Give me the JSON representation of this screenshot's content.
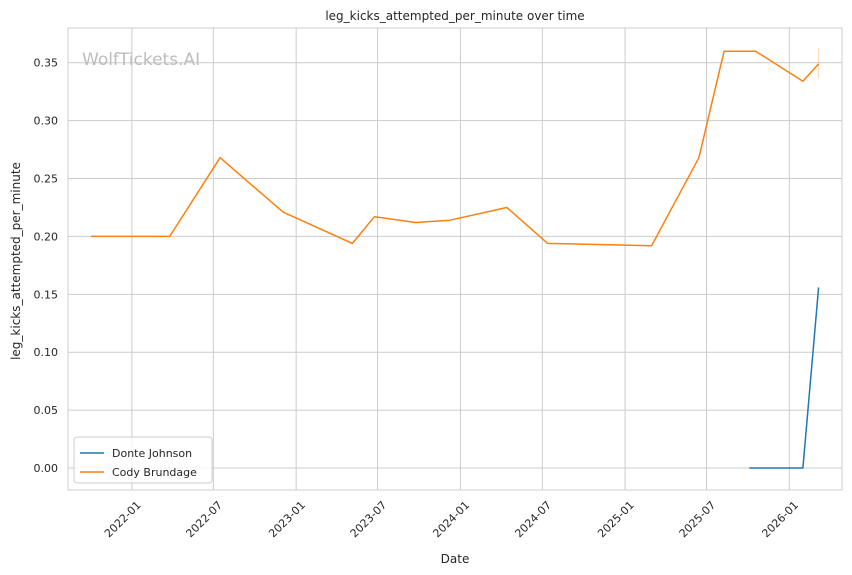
{
  "chart_data": {
    "type": "line",
    "title": "leg_kicks_attempted_per_minute over time",
    "xlabel": "Date",
    "ylabel": "leg_kicks_attempted_per_minute",
    "watermark": "WolfTickets.AI",
    "xlim": [
      "2021-08-12",
      "2026-04-28"
    ],
    "ylim": [
      -0.019,
      0.38
    ],
    "x_ticks": [
      "2022-01",
      "2022-07",
      "2023-01",
      "2023-07",
      "2024-01",
      "2024-07",
      "2025-01",
      "2025-07",
      "2026-01"
    ],
    "y_ticks": [
      "0.00",
      "0.05",
      "0.10",
      "0.15",
      "0.20",
      "0.25",
      "0.30",
      "0.35"
    ],
    "grid": true,
    "legend_position": "lower-left",
    "series": [
      {
        "name": "Donte Johnson",
        "color": "#1f77b4",
        "points": [
          {
            "x": "2025-10-04",
            "y": 0.0
          },
          {
            "x": "2026-01-31",
            "y": 0.0
          },
          {
            "x": "2026-03-07",
            "y": 0.156
          }
        ]
      },
      {
        "name": "Cody Brundage",
        "color": "#ff7f0e",
        "points": [
          {
            "x": "2021-10-02",
            "y": 0.2
          },
          {
            "x": "2022-03-26",
            "y": 0.2
          },
          {
            "x": "2022-07-16",
            "y": 0.268
          },
          {
            "x": "2022-12-03",
            "y": 0.221
          },
          {
            "x": "2023-05-06",
            "y": 0.194
          },
          {
            "x": "2023-06-24",
            "y": 0.217
          },
          {
            "x": "2023-09-23",
            "y": 0.212
          },
          {
            "x": "2023-12-09",
            "y": 0.214
          },
          {
            "x": "2024-04-13",
            "y": 0.225
          },
          {
            "x": "2024-07-13",
            "y": 0.194
          },
          {
            "x": "2025-03-01",
            "y": 0.192
          },
          {
            "x": "2025-06-14",
            "y": 0.268
          },
          {
            "x": "2025-08-09",
            "y": 0.36
          },
          {
            "x": "2025-10-18",
            "y": 0.36
          },
          {
            "x": "2026-01-31",
            "y": 0.334
          },
          {
            "x": "2026-03-07",
            "y": 0.349
          }
        ]
      }
    ]
  }
}
